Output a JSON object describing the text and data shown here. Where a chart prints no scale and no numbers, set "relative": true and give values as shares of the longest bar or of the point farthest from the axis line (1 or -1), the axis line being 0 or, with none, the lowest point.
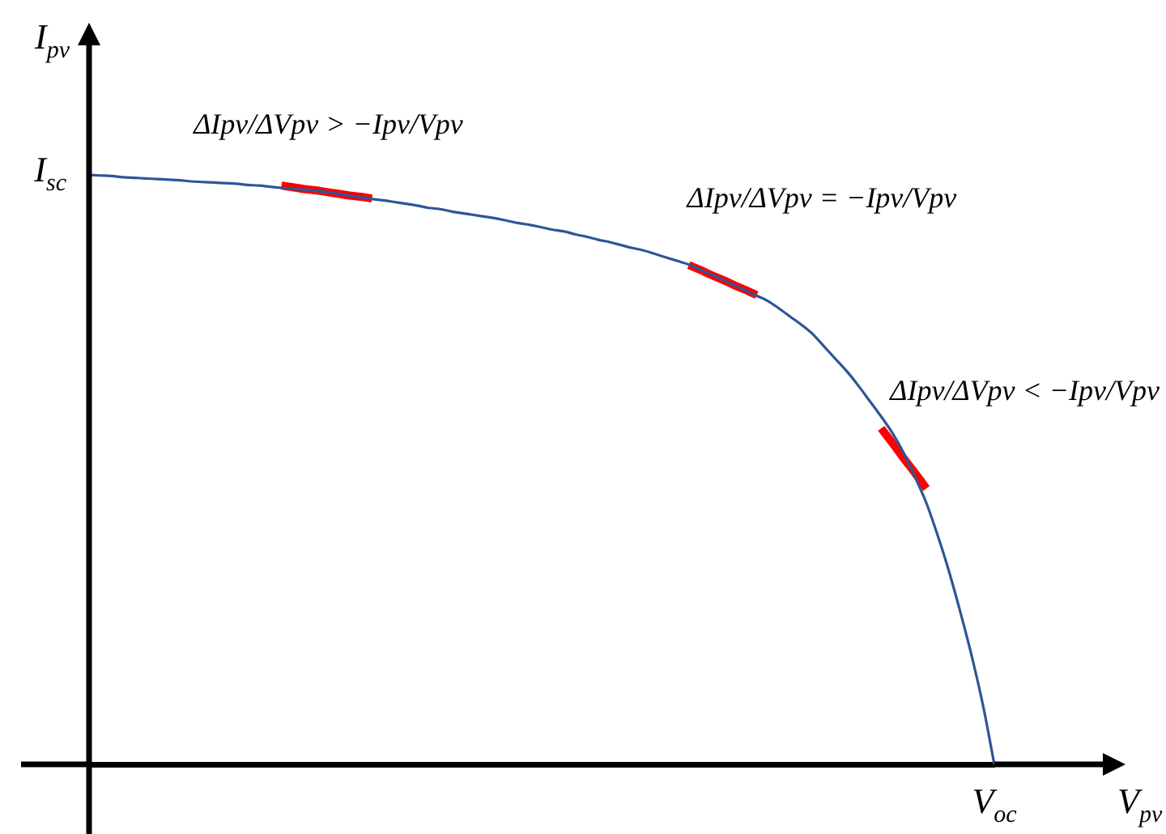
{
  "chart_data": {
    "type": "line",
    "relative": true,
    "xlabel": "V$_{pv}$",
    "ylabel": "I$_{pv}$",
    "categories": [
      null,
      null,
      null,
      null,
      null,
      null,
      null,
      null,
      null,
      null,
      null,
      null,
      null,
      null,
      null,
      null,
      null,
      null,
      null,
      null,
      null,
      null,
      null,
      null,
      null,
      null,
      null,
      null,
      null,
      null,
      null,
      null,
      null,
      null,
      null,
      null,
      null,
      null,
      null,
      null,
      null,
      null,
      null,
      null,
      null,
      null,
      null,
      null,
      null,
      null,
      null,
      null,
      null,
      null,
      null,
      null,
      null,
      null,
      null,
      null,
      null,
      null,
      null,
      null,
      null,
      null,
      null,
      null,
      null,
      null,
      null,
      null,
      null,
      null,
      null,
      null,
      null,
      null,
      null,
      null,
      null
    ],
    "series": [
      {
        "color": "#2f5597",
        "values": [
          1,
          0.999,
          0.998,
          0.996,
          0.995,
          0.994,
          0.993,
          0.992,
          0.991,
          0.989,
          0.988,
          0.987,
          0.986,
          0.985,
          0.983,
          0.982,
          0.98,
          0.978,
          0.976,
          0.975,
          0.973,
          0.971,
          0.968,
          0.965,
          0.962,
          0.959,
          0.957,
          0.954,
          0.951,
          0.948,
          0.944,
          0.942,
          0.938,
          0.935,
          0.932,
          0.929,
          0.926,
          0.922,
          0.918,
          0.915,
          0.911,
          0.907,
          0.904,
          0.899,
          0.895,
          0.89,
          0.886,
          0.881,
          0.876,
          0.872,
          0.866,
          0.86,
          0.854,
          0.848,
          0.839,
          0.831,
          0.822,
          0.813,
          0.804,
          0.795,
          0.786,
          0.773,
          0.759,
          0.745,
          0.729,
          0.708,
          0.687,
          0.666,
          0.642,
          0.616,
          0.59,
          0.562,
          0.528,
          0.487,
          0.443,
          0.388,
          0.327,
          0.258,
          0.184,
          0.1,
          0
        ]
      },
      {
        "color": "#ff0000",
        "values": [
          null,
          null,
          null,
          null,
          null,
          null,
          null,
          null,
          null,
          null,
          null,
          null,
          null,
          null,
          null,
          null,
          null,
          0.982,
          0.979,
          0.976,
          0.974,
          0.971,
          0.968,
          0.965,
          0.963,
          0.96,
          null,
          null,
          null,
          null,
          null,
          null,
          null,
          null,
          null,
          null,
          null,
          null,
          null,
          null,
          null,
          null,
          null,
          null,
          null,
          null,
          null,
          null,
          null,
          null,
          null,
          null,
          null,
          null,
          null,
          null,
          null,
          null,
          null,
          null,
          null,
          null,
          null,
          null,
          null,
          null,
          null,
          null,
          null,
          null,
          null,
          null,
          null,
          null,
          null,
          null,
          null,
          null,
          null,
          null,
          null
        ]
      },
      {
        "color": "#ff0000",
        "values": [
          null,
          null,
          null,
          null,
          null,
          null,
          null,
          null,
          null,
          null,
          null,
          null,
          null,
          null,
          null,
          null,
          null,
          null,
          null,
          null,
          null,
          null,
          null,
          null,
          null,
          null,
          null,
          null,
          null,
          null,
          null,
          null,
          null,
          null,
          null,
          null,
          null,
          null,
          null,
          null,
          null,
          null,
          null,
          null,
          null,
          null,
          null,
          null,
          null,
          null,
          null,
          null,
          null,
          0.847,
          0.839,
          0.83,
          0.822,
          0.813,
          0.805,
          0.796,
          null,
          null,
          null,
          null,
          null,
          null,
          null,
          null,
          null,
          null,
          null,
          null,
          null,
          null,
          null,
          null,
          null,
          null,
          null,
          null,
          null
        ]
      },
      {
        "color": "#ff0000",
        "values": [
          null,
          null,
          null,
          null,
          null,
          null,
          null,
          null,
          null,
          null,
          null,
          null,
          null,
          null,
          null,
          null,
          null,
          null,
          null,
          null,
          null,
          null,
          null,
          null,
          null,
          null,
          null,
          null,
          null,
          null,
          null,
          null,
          null,
          null,
          null,
          null,
          null,
          null,
          null,
          null,
          null,
          null,
          null,
          null,
          null,
          null,
          null,
          null,
          null,
          null,
          null,
          null,
          null,
          null,
          null,
          null,
          null,
          null,
          null,
          null,
          null,
          null,
          null,
          null,
          null,
          null,
          null,
          null,
          null,
          null,
          0.57,
          0.545,
          0.519,
          0.494,
          0.468,
          null,
          null,
          null,
          null,
          null,
          null
        ]
      }
    ],
    "annotations": [
      "ΔIpv/ΔVpv > −Ipv/Vpv",
      "ΔIpv/ΔVpv = −Ipv/Vpv",
      "ΔIpv/ΔVpv < −Ipv/Vpv",
      "I$_{sc}$",
      "V$_{oc}$"
    ]
  }
}
